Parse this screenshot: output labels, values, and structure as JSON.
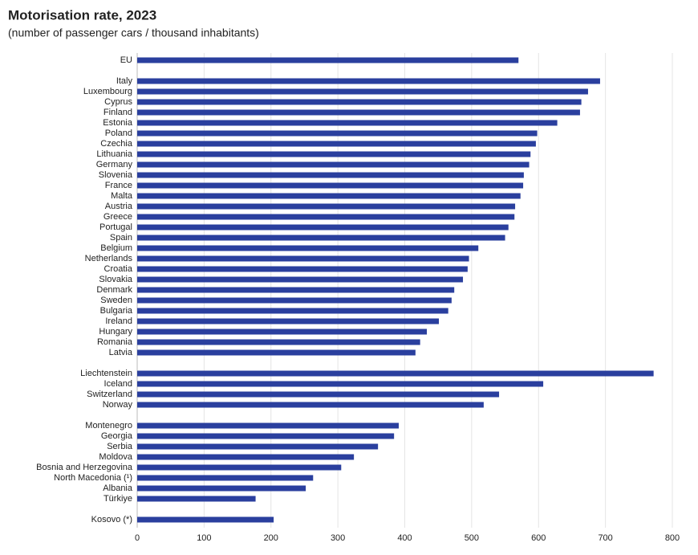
{
  "chart_data": {
    "type": "bar",
    "orientation": "horizontal",
    "title": "Motorisation rate, 2023",
    "subtitle": "(number of passenger cars / thousand inhabitants)",
    "categories": [
      "EU",
      null,
      "Italy",
      "Luxembourg",
      "Cyprus",
      "Finland",
      "Estonia",
      "Poland",
      "Czechia",
      "Lithuania",
      "Germany",
      "Slovenia",
      "France",
      "Malta",
      "Austria",
      "Greece",
      "Portugal",
      "Spain",
      "Belgium",
      "Netherlands",
      "Croatia",
      "Slovakia",
      "Denmark",
      "Sweden",
      "Bulgaria",
      "Ireland",
      "Hungary",
      "Romania",
      "Latvia",
      null,
      "Liechtenstein",
      "Iceland",
      "Switzerland",
      "Norway",
      null,
      "Montenegro",
      "Georgia",
      "Serbia",
      "Moldova",
      "Bosnia and Herzegovina",
      "North Macedonia (¹)",
      "Albania",
      "Türkiye",
      null,
      "Kosovo (*)"
    ],
    "values": [
      570,
      null,
      692,
      674,
      664,
      662,
      628,
      598,
      596,
      588,
      586,
      578,
      577,
      573,
      565,
      564,
      555,
      550,
      510,
      496,
      494,
      487,
      474,
      470,
      465,
      451,
      433,
      423,
      416,
      null,
      772,
      607,
      541,
      518,
      null,
      391,
      384,
      360,
      324,
      305,
      263,
      252,
      177,
      null,
      204
    ],
    "color": "#2a3f9e",
    "xlim": [
      0,
      800
    ],
    "xticks": [
      0,
      100,
      200,
      300,
      400,
      500,
      600,
      700,
      800
    ],
    "grid": true
  }
}
